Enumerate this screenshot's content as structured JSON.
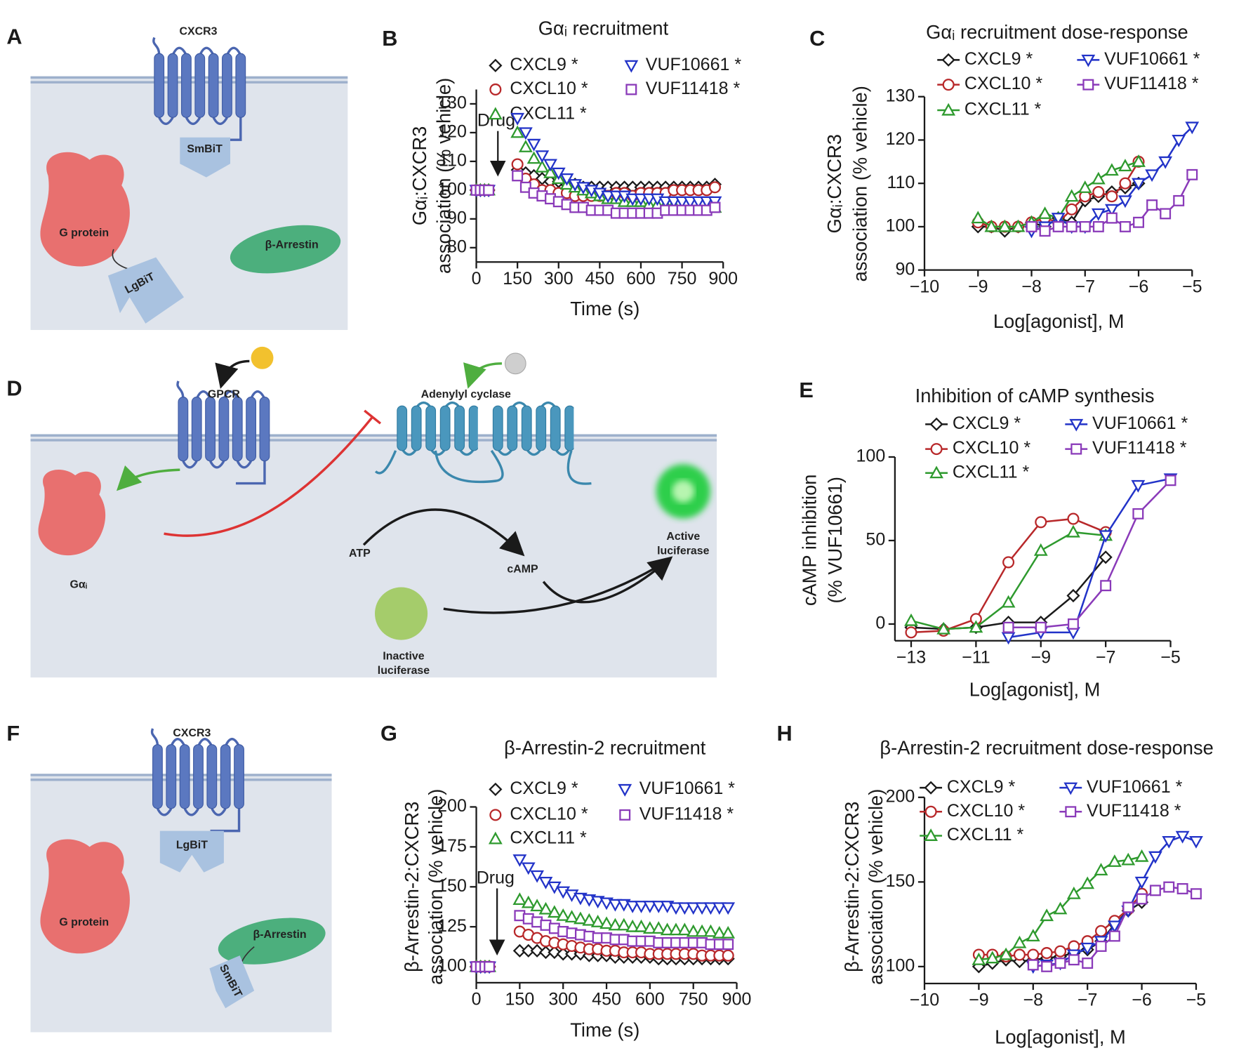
{
  "panel_labels": [
    "A",
    "B",
    "C",
    "D",
    "E",
    "F",
    "G",
    "H"
  ],
  "diagrams": {
    "A": {
      "receptor": "CXCR3",
      "small_bit": "SmBiT",
      "g_protein": "G protein",
      "large_bit": "LgBiT",
      "arrestin": "β-Arrestin"
    },
    "D": {
      "receptor": "GPCR",
      "cyclase": "Adenylyl cyclase",
      "g_protein": "Gαᵢ",
      "substrate": "ATP",
      "product": "cAMP",
      "active": [
        "Active",
        "luciferase"
      ],
      "inactive": [
        "Inactive",
        "luciferase"
      ]
    },
    "F": {
      "receptor": "CXCR3",
      "large_bit": "LgBiT",
      "g_protein": "G protein",
      "arrestin": "β-Arrestin",
      "small_bit": "SmBiT"
    }
  },
  "chart_data": [
    {
      "type": "scatter",
      "title": "Gαᵢ recruitment",
      "xlabel": "Time (s)",
      "ylabel": [
        "Gαᵢ:CXCR3",
        "association (% vehicle)"
      ],
      "annotation": "Drug",
      "xlim": [
        0,
        900
      ],
      "ylim": [
        75,
        135
      ],
      "xticks": [
        0,
        150,
        300,
        450,
        600,
        750,
        900
      ],
      "yticks": [
        80,
        90,
        100,
        110,
        120,
        130
      ],
      "x": [
        0,
        15,
        30,
        45,
        150,
        180,
        210,
        240,
        270,
        300,
        330,
        360,
        390,
        420,
        450,
        480,
        510,
        540,
        570,
        600,
        630,
        660,
        690,
        720,
        750,
        780,
        810,
        840,
        870
      ],
      "series": [
        {
          "name": "CXCL9 *",
          "color": "#1a1a1a",
          "marker": "diamond",
          "values": [
            100,
            100,
            100,
            100,
            107,
            106,
            105,
            104,
            103,
            103,
            102,
            102,
            101,
            101,
            101,
            101,
            101,
            101,
            101,
            101,
            101,
            101,
            101,
            101,
            101,
            101,
            101,
            101,
            102
          ]
        },
        {
          "name": "CXCL10 *",
          "color": "#b8282a",
          "marker": "circle",
          "values": [
            100,
            100,
            100,
            100,
            109,
            104,
            102,
            100,
            100,
            99,
            99,
            98,
            98,
            98,
            98,
            98,
            99,
            99,
            98,
            99,
            99,
            99,
            99,
            100,
            100,
            100,
            100,
            100,
            101
          ]
        },
        {
          "name": "CXCL11 *",
          "color": "#2e9a2e",
          "marker": "tri-up",
          "values": [
            100,
            100,
            100,
            100,
            120,
            115,
            111,
            108,
            106,
            104,
            102,
            101,
            100,
            99,
            98,
            97,
            97,
            96,
            96,
            96,
            95,
            95,
            95,
            95,
            94,
            94,
            94,
            94,
            94
          ]
        },
        {
          "name": "VUF10661 *",
          "color": "#2233c8",
          "marker": "tri-down",
          "values": [
            100,
            100,
            100,
            100,
            125,
            120,
            116,
            112,
            109,
            106,
            104,
            102,
            101,
            100,
            99,
            98,
            98,
            98,
            97,
            97,
            97,
            97,
            96,
            96,
            96,
            96,
            96,
            96,
            96
          ]
        },
        {
          "name": "VUF11418 *",
          "color": "#8a3ab9",
          "marker": "square",
          "values": [
            100,
            100,
            100,
            100,
            105,
            101,
            99,
            98,
            97,
            96,
            95,
            94,
            94,
            93,
            93,
            93,
            92,
            92,
            92,
            92,
            92,
            92,
            93,
            93,
            93,
            93,
            93,
            93,
            94
          ]
        }
      ]
    },
    {
      "type": "line",
      "title": "Gαᵢ recruitment dose-response",
      "xlabel": "Log[agonist], M",
      "ylabel": [
        "Gαᵢ:CXCR3",
        "association (% vehicle)"
      ],
      "xlim": [
        -10,
        -5
      ],
      "ylim": [
        90,
        130
      ],
      "xticks": [
        {
          "value": -10,
          "label": "−10"
        },
        {
          "value": -9,
          "label": "−9"
        },
        {
          "value": -8,
          "label": "−8"
        },
        {
          "value": -7,
          "label": "−7"
        },
        {
          "value": -6,
          "label": "−6"
        },
        {
          "value": -5,
          "label": "−5"
        }
      ],
      "yticks": [
        90,
        100,
        110,
        120,
        130
      ],
      "series": [
        {
          "name": "CXCL9 *",
          "color": "#1a1a1a",
          "marker": "diamond",
          "x": [
            -9,
            -8.75,
            -8.5,
            -8.25,
            -8,
            -7.75,
            -7.5,
            -7.25,
            -7,
            -6.75,
            -6.5,
            -6.25,
            -6
          ],
          "values": [
            100,
            100,
            99,
            100,
            101,
            100,
            102,
            101,
            106,
            107,
            108,
            109,
            110
          ]
        },
        {
          "name": "CXCL10 *",
          "color": "#b8282a",
          "marker": "circle",
          "x": [
            -9,
            -8.75,
            -8.5,
            -8.25,
            -8,
            -7.75,
            -7.5,
            -7.25,
            -7,
            -6.75,
            -6.5,
            -6.25,
            -6
          ],
          "values": [
            101,
            100,
            100,
            100,
            101,
            102,
            101,
            104,
            107,
            108,
            107,
            110,
            115
          ]
        },
        {
          "name": "CXCL11 *",
          "color": "#2e9a2e",
          "marker": "tri-up",
          "x": [
            -9,
            -8.75,
            -8.5,
            -8.25,
            -8,
            -7.75,
            -7.5,
            -7.25,
            -7,
            -6.75,
            -6.5,
            -6.25,
            -6
          ],
          "values": [
            102,
            100,
            100,
            100,
            101,
            103,
            102,
            107,
            109,
            111,
            113,
            114,
            115
          ]
        },
        {
          "name": "VUF10661 *",
          "color": "#2233c8",
          "marker": "tri-down",
          "x": [
            -8,
            -7.75,
            -7.5,
            -7.25,
            -7,
            -6.75,
            -6.5,
            -6.25,
            -6,
            -5.75,
            -5.5,
            -5.25,
            -5
          ],
          "values": [
            99,
            100,
            102,
            100,
            100,
            103,
            104,
            106,
            110,
            112,
            115,
            120,
            123
          ]
        },
        {
          "name": "VUF11418 *",
          "color": "#8a3ab9",
          "marker": "square",
          "x": [
            -8,
            -7.75,
            -7.5,
            -7.25,
            -7,
            -6.75,
            -6.5,
            -6.25,
            -6,
            -5.75,
            -5.5,
            -5.25,
            -5
          ],
          "values": [
            100,
            99,
            100,
            100,
            100,
            100,
            102,
            100,
            101,
            105,
            103,
            106,
            112
          ]
        }
      ]
    },
    {
      "type": "line",
      "title": "Inhibition of cAMP synthesis",
      "xlabel": "Log[agonist], M",
      "ylabel": [
        "cAMP inhibition",
        "(% VUF10661)"
      ],
      "xlim": [
        -13.5,
        -5
      ],
      "ylim": [
        -10,
        100
      ],
      "xticks": [
        {
          "value": -13,
          "label": "−13"
        },
        {
          "value": -11,
          "label": "−11"
        },
        {
          "value": -9,
          "label": "−9"
        },
        {
          "value": -7,
          "label": "−7"
        },
        {
          "value": -5,
          "label": "−5"
        }
      ],
      "yticks": [
        0,
        50,
        100
      ],
      "series": [
        {
          "name": "CXCL9 *",
          "color": "#1a1a1a",
          "marker": "diamond",
          "x": [
            -13,
            -12,
            -11,
            -10,
            -9,
            -8,
            -7
          ],
          "values": [
            -2,
            -3,
            -2,
            1,
            1,
            17,
            40
          ]
        },
        {
          "name": "CXCL10 *",
          "color": "#b8282a",
          "marker": "circle",
          "x": [
            -13,
            -12,
            -11,
            -10,
            -9,
            -8,
            -7
          ],
          "values": [
            -5,
            -4,
            3,
            37,
            61,
            63,
            55
          ]
        },
        {
          "name": "CXCL11 *",
          "color": "#2e9a2e",
          "marker": "tri-up",
          "x": [
            -13,
            -12,
            -11,
            -10,
            -9,
            -8,
            -7
          ],
          "values": [
            2,
            -3,
            -2,
            13,
            44,
            55,
            53
          ]
        },
        {
          "name": "VUF10661 *",
          "color": "#2233c8",
          "marker": "tri-down",
          "x": [
            -10,
            -9,
            -8,
            -7,
            -6,
            -5
          ],
          "values": [
            -8,
            -5,
            -5,
            53,
            83,
            87
          ]
        },
        {
          "name": "VUF11418 *",
          "color": "#8a3ab9",
          "marker": "square",
          "x": [
            -10,
            -9,
            -8,
            -7,
            -6,
            -5
          ],
          "values": [
            -2,
            -2,
            0,
            23,
            66,
            86
          ]
        }
      ]
    },
    {
      "type": "scatter",
      "title": "β-Arrestin-2 recruitment",
      "xlabel": "Time (s)",
      "ylabel": [
        "β-Arrestin-2:CXCR3",
        "association (% vehicle)"
      ],
      "annotation": "Drug",
      "xlim": [
        0,
        900
      ],
      "ylim": [
        90,
        200
      ],
      "xticks": [
        0,
        150,
        300,
        450,
        600,
        750,
        900
      ],
      "yticks": [
        100,
        125,
        150,
        175,
        200
      ],
      "x": [
        0,
        15,
        30,
        45,
        150,
        180,
        210,
        240,
        270,
        300,
        330,
        360,
        390,
        420,
        450,
        480,
        510,
        540,
        570,
        600,
        630,
        660,
        690,
        720,
        750,
        780,
        810,
        840,
        870
      ],
      "series": [
        {
          "name": "CXCL9 *",
          "color": "#1a1a1a",
          "marker": "diamond",
          "values": [
            100,
            100,
            100,
            100,
            110,
            110,
            110,
            109,
            109,
            108,
            108,
            108,
            107,
            107,
            107,
            106,
            106,
            106,
            106,
            106,
            105,
            105,
            105,
            105,
            105,
            105,
            105,
            105,
            105
          ]
        },
        {
          "name": "CXCL10 *",
          "color": "#b8282a",
          "marker": "circle",
          "values": [
            100,
            100,
            100,
            100,
            122,
            120,
            118,
            116,
            115,
            114,
            113,
            112,
            111,
            111,
            110,
            110,
            109,
            109,
            109,
            108,
            108,
            108,
            108,
            108,
            108,
            107,
            107,
            107,
            107
          ]
        },
        {
          "name": "CXCL11 *",
          "color": "#2e9a2e",
          "marker": "tri-up",
          "values": [
            100,
            100,
            100,
            100,
            142,
            140,
            138,
            136,
            134,
            132,
            131,
            130,
            129,
            128,
            127,
            126,
            126,
            125,
            125,
            124,
            124,
            123,
            123,
            123,
            122,
            122,
            122,
            121,
            121
          ]
        },
        {
          "name": "VUF10661 *",
          "color": "#2233c8",
          "marker": "tri-down",
          "values": [
            100,
            100,
            100,
            100,
            167,
            162,
            157,
            153,
            150,
            147,
            145,
            143,
            142,
            141,
            140,
            139,
            139,
            138,
            138,
            138,
            138,
            138,
            137,
            137,
            137,
            137,
            137,
            137,
            137
          ]
        },
        {
          "name": "VUF11418 *",
          "color": "#8a3ab9",
          "marker": "square",
          "values": [
            100,
            100,
            100,
            100,
            132,
            130,
            128,
            126,
            124,
            122,
            121,
            120,
            119,
            118,
            118,
            117,
            117,
            116,
            116,
            116,
            115,
            115,
            115,
            115,
            115,
            115,
            114,
            114,
            114
          ]
        }
      ]
    },
    {
      "type": "line",
      "title": "β-Arrestin-2 recruitment dose-response",
      "xlabel": "Log[agonist], M",
      "ylabel": [
        "β-Arrestin-2:CXCR3",
        "association (% vehicle)"
      ],
      "xlim": [
        -10,
        -5
      ],
      "ylim": [
        90,
        200
      ],
      "xticks": [
        {
          "value": -10,
          "label": "−10"
        },
        {
          "value": -9,
          "label": "−9"
        },
        {
          "value": -8,
          "label": "−8"
        },
        {
          "value": -7,
          "label": "−7"
        },
        {
          "value": -6,
          "label": "−6"
        },
        {
          "value": -5,
          "label": "−5"
        }
      ],
      "yticks": [
        100,
        150,
        200
      ],
      "series": [
        {
          "name": "CXCL9 *",
          "color": "#1a1a1a",
          "marker": "diamond",
          "x": [
            -9,
            -8.75,
            -8.5,
            -8.25,
            -8,
            -7.75,
            -7.5,
            -7.25,
            -7,
            -6.75,
            -6.5,
            -6.25,
            -6
          ],
          "values": [
            100,
            102,
            104,
            103,
            104,
            105,
            106,
            108,
            110,
            115,
            125,
            133,
            138
          ]
        },
        {
          "name": "CXCL10 *",
          "color": "#b8282a",
          "marker": "circle",
          "x": [
            -9,
            -8.75,
            -8.5,
            -8.25,
            -8,
            -7.75,
            -7.5,
            -7.25,
            -7,
            -6.75,
            -6.5,
            -6.25,
            -6
          ],
          "values": [
            107,
            107,
            106,
            107,
            107,
            108,
            109,
            112,
            115,
            121,
            127,
            134,
            143
          ]
        },
        {
          "name": "CXCL11 *",
          "color": "#2e9a2e",
          "marker": "tri-up",
          "x": [
            -9,
            -8.75,
            -8.5,
            -8.25,
            -8,
            -7.75,
            -7.5,
            -7.25,
            -7,
            -6.75,
            -6.5,
            -6.25,
            -6
          ],
          "values": [
            104,
            105,
            107,
            114,
            118,
            130,
            134,
            143,
            149,
            157,
            162,
            163,
            165
          ]
        },
        {
          "name": "VUF10661 *",
          "color": "#2233c8",
          "marker": "tri-down",
          "x": [
            -8,
            -7.75,
            -7.5,
            -7.25,
            -7,
            -6.75,
            -6.5,
            -6.25,
            -6,
            -5.75,
            -5.5,
            -5.25,
            -5
          ],
          "values": [
            100,
            101,
            102,
            107,
            111,
            115,
            124,
            133,
            150,
            165,
            174,
            177,
            174
          ]
        },
        {
          "name": "VUF11418 *",
          "color": "#8a3ab9",
          "marker": "square",
          "x": [
            -8,
            -7.75,
            -7.5,
            -7.25,
            -7,
            -6.75,
            -6.5,
            -6.25,
            -6,
            -5.75,
            -5.5,
            -5.25,
            -5
          ],
          "values": [
            101,
            100,
            102,
            104,
            102,
            112,
            118,
            135,
            140,
            145,
            147,
            146,
            143
          ]
        }
      ]
    }
  ]
}
